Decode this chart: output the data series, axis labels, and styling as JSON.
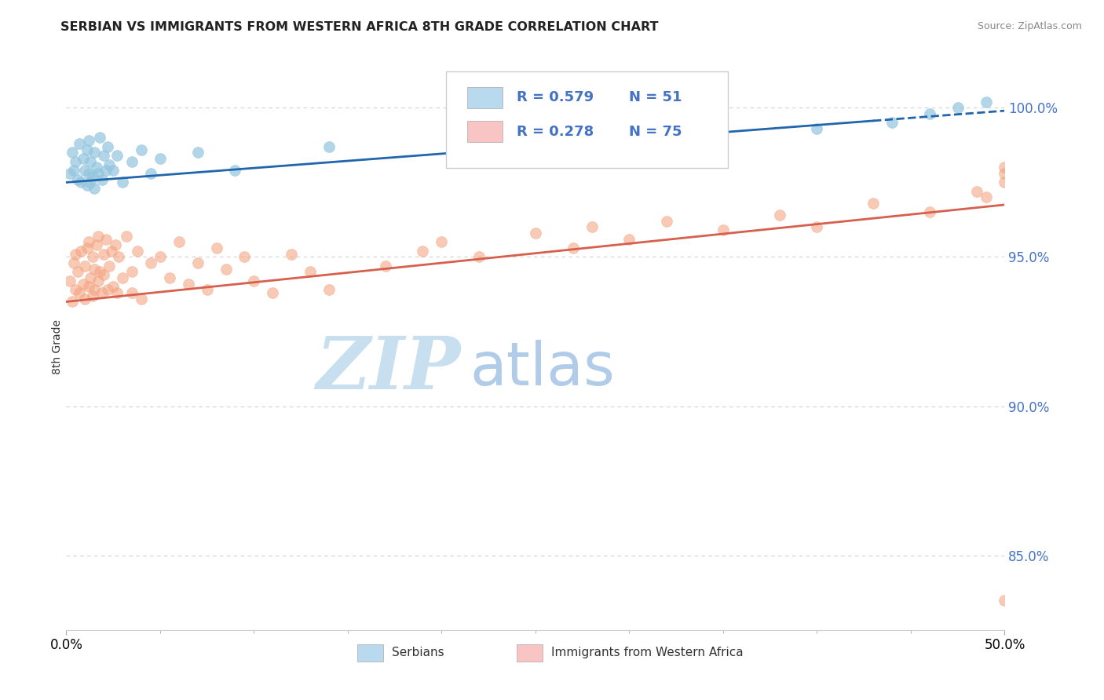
{
  "title": "SERBIAN VS IMMIGRANTS FROM WESTERN AFRICA 8TH GRADE CORRELATION CHART",
  "source": "Source: ZipAtlas.com",
  "ylabel": "8th Grade",
  "xlim": [
    0.0,
    50.0
  ],
  "ylim": [
    82.5,
    101.5
  ],
  "yticks": [
    85.0,
    90.0,
    95.0,
    100.0
  ],
  "ytick_labels": [
    "85.0%",
    "90.0%",
    "95.0%",
    "100.0%"
  ],
  "xtick_labels": [
    "0.0%",
    "50.0%"
  ],
  "blue_trend_intercept": 97.5,
  "blue_trend_slope": 0.048,
  "blue_trend_solid_xmax": 43.0,
  "pink_trend_intercept": 93.5,
  "pink_trend_slope": 0.065,
  "blue_color": "#92c5de",
  "blue_trend_color": "#2166ac",
  "pink_color": "#f4a582",
  "pink_trend_color": "#d6604d",
  "legend_blue_color": "#b8d9ee",
  "legend_pink_color": "#f9c4c4",
  "tick_label_color": "#4472c4",
  "grid_color": "#d0d0d0",
  "watermark_zip_color": "#c8dff0",
  "watermark_atlas_color": "#b0cce8",
  "background_color": "#ffffff",
  "blue_scatter_x": [
    0.2,
    0.3,
    0.4,
    0.5,
    0.6,
    0.7,
    0.8,
    0.9,
    1.0,
    1.1,
    1.1,
    1.2,
    1.2,
    1.3,
    1.3,
    1.4,
    1.5,
    1.5,
    1.6,
    1.7,
    1.8,
    1.9,
    2.0,
    2.1,
    2.2,
    2.3,
    2.5,
    2.7,
    3.0,
    3.5,
    4.0,
    4.5,
    5.0,
    7.0,
    9.0,
    14.0,
    40.0,
    44.0,
    46.0,
    47.5,
    49.0
  ],
  "blue_scatter_y": [
    97.8,
    98.5,
    97.9,
    98.2,
    97.6,
    98.8,
    97.5,
    98.3,
    97.9,
    97.4,
    98.6,
    97.8,
    98.9,
    97.5,
    98.2,
    97.7,
    98.5,
    97.3,
    98.0,
    97.8,
    99.0,
    97.6,
    98.4,
    97.9,
    98.7,
    98.1,
    97.9,
    98.4,
    97.5,
    98.2,
    98.6,
    97.8,
    98.3,
    98.5,
    97.9,
    98.7,
    99.3,
    99.5,
    99.8,
    100.0,
    100.2
  ],
  "pink_scatter_x": [
    0.2,
    0.3,
    0.4,
    0.5,
    0.5,
    0.6,
    0.7,
    0.8,
    0.9,
    1.0,
    1.0,
    1.1,
    1.2,
    1.2,
    1.3,
    1.4,
    1.4,
    1.5,
    1.5,
    1.6,
    1.7,
    1.7,
    1.8,
    1.9,
    2.0,
    2.0,
    2.1,
    2.2,
    2.3,
    2.4,
    2.5,
    2.6,
    2.7,
    2.8,
    3.0,
    3.2,
    3.5,
    3.5,
    3.8,
    4.0,
    4.5,
    5.0,
    5.5,
    6.0,
    6.5,
    7.0,
    7.5,
    8.0,
    8.5,
    9.5,
    10.0,
    11.0,
    12.0,
    13.0,
    14.0,
    17.0,
    19.0,
    20.0,
    22.0,
    25.0,
    27.0,
    28.0,
    30.0,
    32.0,
    35.0,
    38.0,
    40.0,
    43.0,
    46.0,
    48.5,
    49.0,
    50.0,
    50.0,
    50.0,
    50.0
  ],
  "pink_scatter_y": [
    94.2,
    93.5,
    94.8,
    93.9,
    95.1,
    94.5,
    93.8,
    95.2,
    94.1,
    94.7,
    93.6,
    95.3,
    94.0,
    95.5,
    94.3,
    93.7,
    95.0,
    94.6,
    93.9,
    95.4,
    94.2,
    95.7,
    94.5,
    93.8,
    95.1,
    94.4,
    95.6,
    93.9,
    94.7,
    95.2,
    94.0,
    95.4,
    93.8,
    95.0,
    94.3,
    95.7,
    94.5,
    93.8,
    95.2,
    93.6,
    94.8,
    95.0,
    94.3,
    95.5,
    94.1,
    94.8,
    93.9,
    95.3,
    94.6,
    95.0,
    94.2,
    93.8,
    95.1,
    94.5,
    93.9,
    94.7,
    95.2,
    95.5,
    95.0,
    95.8,
    95.3,
    96.0,
    95.6,
    96.2,
    95.9,
    96.4,
    96.0,
    96.8,
    96.5,
    97.2,
    97.0,
    97.5,
    97.8,
    98.0,
    83.5
  ]
}
